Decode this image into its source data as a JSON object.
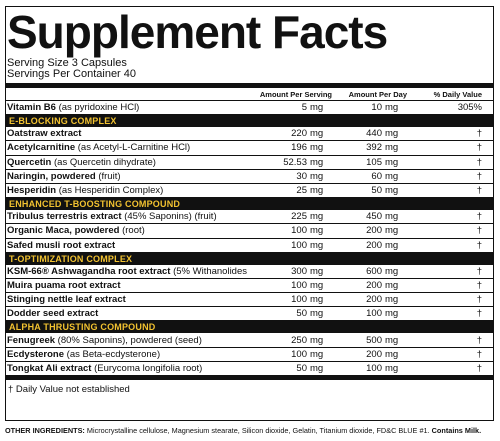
{
  "title": "Supplement Facts",
  "serving_size": "Serving Size 3 Capsules",
  "servings_per_container": "Servings Per Container 40",
  "headers": {
    "per_serving": "Amount Per Serving",
    "per_day": "Amount Per Day",
    "daily_value": "% Daily Value"
  },
  "vitamin": {
    "name_bold": "Vitamin B6",
    "name_rest": " (as pyridoxine HCl)",
    "serving_num": "5",
    "serving_unit": "mg",
    "day_num": "10",
    "day_unit": "mg",
    "dv": "305%"
  },
  "sections": [
    {
      "title": "E-BLOCKING COMPLEX",
      "rows": [
        {
          "bold": "Oatstraw extract",
          "rest": "",
          "s_num": "220",
          "s_unit": "mg",
          "d_num": "440",
          "d_unit": "mg",
          "dv": "†"
        },
        {
          "bold": "Acetylcarnitine",
          "rest": " (as Acetyl-L-Carnitine HCl)",
          "s_num": "196",
          "s_unit": "mg",
          "d_num": "392",
          "d_unit": "mg",
          "dv": "†"
        },
        {
          "bold": "Quercetin",
          "rest": " (as Quercetin dihydrate)",
          "s_num": "52.53",
          "s_unit": "mg",
          "d_num": "105",
          "d_unit": "mg",
          "dv": "†"
        },
        {
          "bold": "Naringin, powdered",
          "rest": " (fruit)",
          "s_num": "30",
          "s_unit": "mg",
          "d_num": "60",
          "d_unit": "mg",
          "dv": "†"
        },
        {
          "bold": "Hesperidin",
          "rest": " (as Hesperidin Complex)",
          "s_num": "25",
          "s_unit": "mg",
          "d_num": "50",
          "d_unit": "mg",
          "dv": "†"
        }
      ]
    },
    {
      "title": "ENHANCED T-BOOSTING COMPOUND",
      "rows": [
        {
          "bold": "Tribulus terrestris extract",
          "rest": " (45% Saponins) (fruit)",
          "s_num": "225",
          "s_unit": "mg",
          "d_num": "450",
          "d_unit": "mg",
          "dv": "†"
        },
        {
          "bold": "Organic Maca, powdered",
          "rest": " (root)",
          "s_num": "100",
          "s_unit": "mg",
          "d_num": "200",
          "d_unit": "mg",
          "dv": "†"
        },
        {
          "bold": "Safed musli root extract",
          "rest": "",
          "s_num": "100",
          "s_unit": "mg",
          "d_num": "200",
          "d_unit": "mg",
          "dv": "†"
        }
      ]
    },
    {
      "title": "T-OPTIMIZATION COMPLEX",
      "rows": [
        {
          "bold": "KSM-66® Ashwagandha root extract",
          "rest": " (5% Withanolides)",
          "s_num": "300",
          "s_unit": "mg",
          "d_num": "600",
          "d_unit": "mg",
          "dv": "†"
        },
        {
          "bold": "Muira puama root extract",
          "rest": "",
          "s_num": "100",
          "s_unit": "mg",
          "d_num": "200",
          "d_unit": "mg",
          "dv": "†"
        },
        {
          "bold": "Stinging nettle leaf extract",
          "rest": "",
          "s_num": "100",
          "s_unit": "mg",
          "d_num": "200",
          "d_unit": "mg",
          "dv": "†"
        },
        {
          "bold": "Dodder seed extract",
          "rest": "",
          "s_num": "50",
          "s_unit": "mg",
          "d_num": "100",
          "d_unit": "mg",
          "dv": "†"
        }
      ]
    },
    {
      "title": "ALPHA THRUSTING COMPOUND",
      "rows": [
        {
          "bold": "Fenugreek",
          "rest": " (80% Saponins), powdered (seed)",
          "s_num": "250",
          "s_unit": "mg",
          "d_num": "500",
          "d_unit": "mg",
          "dv": "†"
        },
        {
          "bold": "Ecdysterone",
          "rest": " (as Beta-ecdysterone)",
          "s_num": "100",
          "s_unit": "mg",
          "d_num": "200",
          "d_unit": "mg",
          "dv": "†"
        },
        {
          "bold": "Tongkat Ali extract",
          "rest": " (Eurycoma longifolia root)",
          "s_num": "50",
          "s_unit": "mg",
          "d_num": "100",
          "d_unit": "mg",
          "dv": "†"
        }
      ]
    }
  ],
  "footnote": "† Daily Value not established",
  "other_ingredients": {
    "label": "OTHER INGREDIENTS:",
    "text": " Microcrystalline cellulose, Magnesium stearate, Silicon dioxide, Gelatin, Titanium dioxide, FD&C BLUE #1. ",
    "contains": "Contains Milk."
  },
  "colors": {
    "section_bg": "#111111",
    "section_text": "#f2c230"
  }
}
